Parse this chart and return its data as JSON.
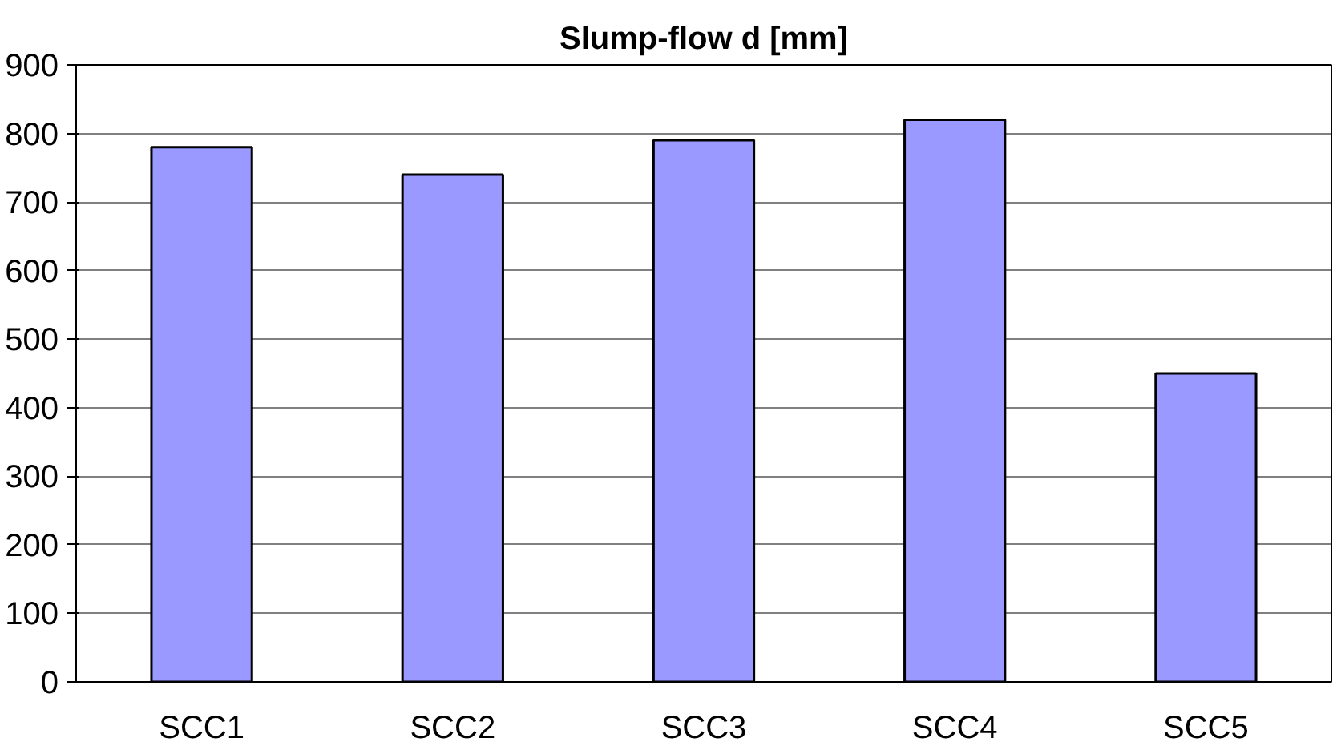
{
  "chart_data": {
    "type": "bar",
    "title": "Slump-flow d [mm]",
    "categories": [
      "SCC1",
      "SCC2",
      "SCC3",
      "SCC4",
      "SCC5"
    ],
    "values": [
      780,
      740,
      790,
      820,
      450
    ],
    "color": "#9999ff",
    "ylim": [
      0,
      900
    ],
    "yticks": [
      0,
      100,
      200,
      300,
      400,
      500,
      600,
      700,
      800,
      900
    ],
    "grid": "y"
  }
}
